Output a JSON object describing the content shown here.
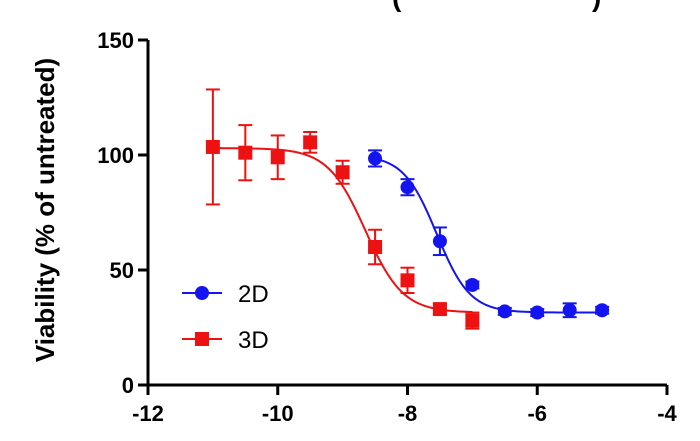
{
  "chart_data": {
    "type": "scatter",
    "title_fragment": "(",
    "title_fragment_end": ")",
    "ylabel": "Viability (% of untreated)",
    "xlabel": "",
    "xlim": [
      -12,
      -4
    ],
    "ylim": [
      0,
      150
    ],
    "x_ticks": [
      -12,
      -10,
      -8,
      -6,
      -4
    ],
    "x_tick_labels": [
      "-12",
      "-10",
      "-8",
      "-6",
      "-4"
    ],
    "y_ticks": [
      0,
      50,
      100,
      150
    ],
    "y_tick_labels": [
      "0",
      "50",
      "100",
      "150"
    ],
    "grid": false,
    "legend_position": "bottom-left",
    "series": [
      {
        "name": "2D",
        "color": "#1414f0",
        "marker": "circle",
        "points": [
          {
            "x": -8.5,
            "y": 98.5,
            "err": 3.5
          },
          {
            "x": -8.0,
            "y": 86.0,
            "err": 3.5
          },
          {
            "x": -7.5,
            "y": 62.5,
            "err": 6.0
          },
          {
            "x": -7.0,
            "y": 43.5,
            "err": 1.5
          },
          {
            "x": -6.5,
            "y": 32.0,
            "err": 1.5
          },
          {
            "x": -6.0,
            "y": 31.5,
            "err": 1.5
          },
          {
            "x": -5.5,
            "y": 32.5,
            "err": 3.0
          },
          {
            "x": -5.0,
            "y": 32.5,
            "err": 1.5
          }
        ],
        "fit": {
          "top": 100,
          "bottom": 31.5,
          "logEC50": -7.55,
          "hill": 1.7,
          "x_range": [
            -8.5,
            -5.0
          ]
        }
      },
      {
        "name": "3D",
        "color": "#ee1111",
        "marker": "square",
        "points": [
          {
            "x": -11.0,
            "y": 103.5,
            "err": 25.0
          },
          {
            "x": -10.5,
            "y": 101.0,
            "err": 12.0
          },
          {
            "x": -10.0,
            "y": 99.0,
            "err": 9.5
          },
          {
            "x": -9.5,
            "y": 105.5,
            "err": 4.5
          },
          {
            "x": -9.0,
            "y": 92.5,
            "err": 5.0
          },
          {
            "x": -8.5,
            "y": 60.0,
            "err": 7.5
          },
          {
            "x": -8.0,
            "y": 45.5,
            "err": 5.5
          },
          {
            "x": -7.5,
            "y": 33.0,
            "err": 2.0
          },
          {
            "x": -7.0,
            "y": 28.0,
            "err": 3.5
          }
        ],
        "fit": {
          "top": 103,
          "bottom": 31.5,
          "logEC50": -8.65,
          "hill": 1.5,
          "x_range": [
            -11.0,
            -7.0
          ]
        }
      }
    ]
  }
}
